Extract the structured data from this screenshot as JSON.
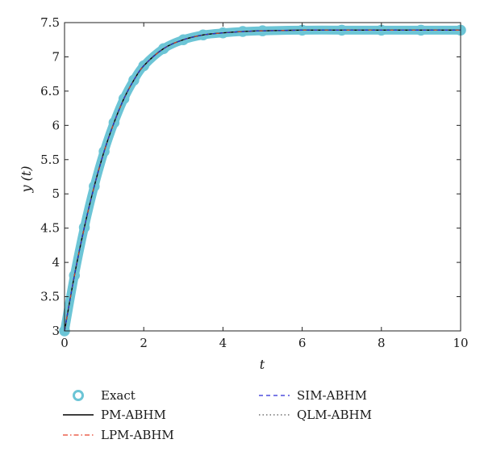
{
  "chart_data": {
    "type": "line",
    "xlabel": "t",
    "ylabel": "y (t)",
    "xlim": [
      0,
      10
    ],
    "ylim": [
      3,
      7.5
    ],
    "x_ticks": [
      "0",
      "2",
      "4",
      "6",
      "8",
      "10"
    ],
    "y_ticks": [
      "3",
      "3.5",
      "4",
      "4.5",
      "5",
      "5.5",
      "6",
      "6.5",
      "7",
      "7.5"
    ],
    "grid": false,
    "legend_position": "bottom",
    "x": [
      0,
      0.25,
      0.5,
      0.75,
      1,
      1.25,
      1.5,
      1.75,
      2,
      2.5,
      3,
      3.5,
      4,
      4.5,
      5,
      6,
      7,
      8,
      9,
      10
    ],
    "series": [
      {
        "name": "Exact",
        "style": "circle-markers",
        "color": "#6cc5d6",
        "values": [
          3.0,
          3.81,
          4.51,
          5.11,
          5.62,
          6.04,
          6.39,
          6.66,
          6.87,
          7.12,
          7.25,
          7.32,
          7.35,
          7.37,
          7.38,
          7.39,
          7.39,
          7.39,
          7.39,
          7.39
        ]
      },
      {
        "name": "PM-ABHM",
        "style": "solid",
        "color": "#000000",
        "values": [
          3.0,
          3.81,
          4.51,
          5.11,
          5.62,
          6.04,
          6.39,
          6.66,
          6.87,
          7.12,
          7.25,
          7.32,
          7.35,
          7.37,
          7.38,
          7.39,
          7.39,
          7.39,
          7.39,
          7.39
        ]
      },
      {
        "name": "LPM-ABHM",
        "style": "dash-dot",
        "color": "#e8402a",
        "values": [
          3.0,
          3.81,
          4.51,
          5.11,
          5.62,
          6.04,
          6.39,
          6.66,
          6.87,
          7.12,
          7.25,
          7.32,
          7.35,
          7.37,
          7.38,
          7.39,
          7.39,
          7.39,
          7.39,
          7.39
        ]
      },
      {
        "name": "SIM-ABHM",
        "style": "dashed",
        "color": "#2b2bd6",
        "values": [
          3.0,
          3.81,
          4.51,
          5.11,
          5.62,
          6.04,
          6.39,
          6.66,
          6.87,
          7.12,
          7.25,
          7.32,
          7.35,
          7.37,
          7.38,
          7.39,
          7.39,
          7.39,
          7.39,
          7.39
        ]
      },
      {
        "name": "QLM-ABHM",
        "style": "dotted",
        "color": "#555555",
        "values": [
          3.0,
          3.81,
          4.51,
          5.11,
          5.62,
          6.04,
          6.39,
          6.66,
          6.87,
          7.12,
          7.25,
          7.32,
          7.35,
          7.37,
          7.38,
          7.39,
          7.39,
          7.39,
          7.39,
          7.39
        ]
      }
    ]
  }
}
